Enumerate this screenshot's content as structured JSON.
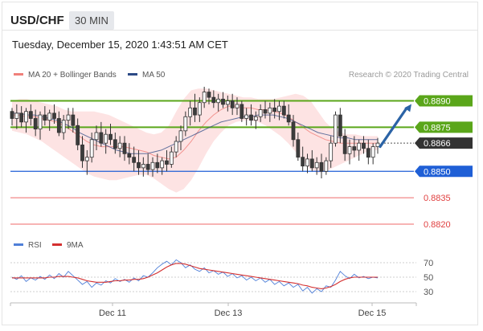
{
  "header": {
    "symbol": "USD/CHF",
    "timeframe": "30 MIN",
    "timestamp": "Tuesday, December 15, 2020 1:43:51 AM CET"
  },
  "legend": {
    "bollinger_label": "MA 20 + Bollinger Bands",
    "ma50_label": "MA 50",
    "credit": "Research © 2020 Trading Central",
    "rsi_label": "RSI",
    "rsi_ma_label": "9MA"
  },
  "colors": {
    "bollinger": "#f0807a",
    "bollinger_fill": "#fde3e3",
    "ma50": "#2c4a86",
    "resistance": "#5aa61a",
    "support": "#1f5fd6",
    "target_low": "#ef6a6a",
    "current": "#333333",
    "arrow": "#2b63a6",
    "rsi": "#4f7fd8",
    "rsi_ma": "#d43030"
  },
  "chart_data": [
    {
      "type": "candlestick",
      "title": "",
      "x_ticks": [
        "Dec 11",
        "Dec 13",
        "Dec 15"
      ],
      "ylim": [
        0.8815,
        0.8898
      ],
      "levels": [
        {
          "value": 0.889,
          "label": "0.8890",
          "role": "resistance"
        },
        {
          "value": 0.8875,
          "label": "0.8875",
          "role": "resistance"
        },
        {
          "value": 0.8866,
          "label": "0.8866",
          "role": "current"
        },
        {
          "value": 0.885,
          "label": "0.8850",
          "role": "support"
        },
        {
          "value": 0.8835,
          "label": "0.8835",
          "role": "target_low"
        },
        {
          "value": 0.882,
          "label": "0.8820",
          "role": "target_low"
        }
      ],
      "ohlc": [
        [
          0.8884,
          0.8886,
          0.8876,
          0.888
        ],
        [
          0.888,
          0.8888,
          0.8874,
          0.8883
        ],
        [
          0.8883,
          0.8887,
          0.8875,
          0.8878
        ],
        [
          0.8878,
          0.8886,
          0.8872,
          0.8884
        ],
        [
          0.8884,
          0.8888,
          0.8876,
          0.888
        ],
        [
          0.888,
          0.8885,
          0.887,
          0.8874
        ],
        [
          0.8874,
          0.8884,
          0.8868,
          0.8882
        ],
        [
          0.8882,
          0.8887,
          0.8876,
          0.8879
        ],
        [
          0.8879,
          0.8885,
          0.8873,
          0.8883
        ],
        [
          0.8883,
          0.8888,
          0.8877,
          0.888
        ],
        [
          0.888,
          0.8884,
          0.887,
          0.8872
        ],
        [
          0.8872,
          0.8882,
          0.8868,
          0.8879
        ],
        [
          0.8879,
          0.8886,
          0.8874,
          0.8882
        ],
        [
          0.8882,
          0.8886,
          0.8872,
          0.8876
        ],
        [
          0.8876,
          0.888,
          0.8862,
          0.8865
        ],
        [
          0.8865,
          0.887,
          0.8852,
          0.8856
        ],
        [
          0.8856,
          0.8862,
          0.8848,
          0.8858
        ],
        [
          0.8858,
          0.8872,
          0.8855,
          0.8868
        ],
        [
          0.8868,
          0.8876,
          0.8862,
          0.8872
        ],
        [
          0.8872,
          0.8878,
          0.8864,
          0.8866
        ],
        [
          0.8866,
          0.8874,
          0.886,
          0.8871
        ],
        [
          0.8871,
          0.8877,
          0.8865,
          0.8868
        ],
        [
          0.8868,
          0.8872,
          0.886,
          0.8863
        ],
        [
          0.8863,
          0.887,
          0.8858,
          0.8866
        ],
        [
          0.8866,
          0.887,
          0.8856,
          0.886
        ],
        [
          0.886,
          0.8866,
          0.8854,
          0.8858
        ],
        [
          0.8858,
          0.8864,
          0.885,
          0.8855
        ],
        [
          0.8855,
          0.8862,
          0.8848,
          0.8852
        ],
        [
          0.8852,
          0.8858,
          0.8847,
          0.8854
        ],
        [
          0.8854,
          0.886,
          0.8848,
          0.8851
        ],
        [
          0.8851,
          0.8858,
          0.8847,
          0.8855
        ],
        [
          0.8855,
          0.886,
          0.8849,
          0.8852
        ],
        [
          0.8852,
          0.8858,
          0.8848,
          0.8856
        ],
        [
          0.8856,
          0.8862,
          0.885,
          0.8854
        ],
        [
          0.8854,
          0.8864,
          0.8852,
          0.8861
        ],
        [
          0.8861,
          0.887,
          0.8858,
          0.8867
        ],
        [
          0.8867,
          0.8876,
          0.8862,
          0.8873
        ],
        [
          0.8873,
          0.8884,
          0.887,
          0.8881
        ],
        [
          0.8881,
          0.889,
          0.8876,
          0.8886
        ],
        [
          0.8886,
          0.8894,
          0.8878,
          0.8882
        ],
        [
          0.8882,
          0.8892,
          0.8878,
          0.8889
        ],
        [
          0.8889,
          0.8898,
          0.8886,
          0.8895
        ],
        [
          0.8895,
          0.8897,
          0.8888,
          0.8892
        ],
        [
          0.8892,
          0.8896,
          0.8886,
          0.8889
        ],
        [
          0.8889,
          0.8894,
          0.8884,
          0.8891
        ],
        [
          0.8891,
          0.8895,
          0.8886,
          0.8888
        ],
        [
          0.8888,
          0.8893,
          0.8884,
          0.889
        ],
        [
          0.889,
          0.8894,
          0.8882,
          0.8886
        ],
        [
          0.8886,
          0.8892,
          0.8882,
          0.8888
        ],
        [
          0.8888,
          0.889,
          0.8878,
          0.888
        ],
        [
          0.888,
          0.8886,
          0.8876,
          0.8882
        ],
        [
          0.8882,
          0.8888,
          0.8876,
          0.8879
        ],
        [
          0.8879,
          0.8884,
          0.8874,
          0.8881
        ],
        [
          0.8881,
          0.8888,
          0.8878,
          0.8885
        ],
        [
          0.8885,
          0.889,
          0.888,
          0.8883
        ],
        [
          0.8883,
          0.8889,
          0.8878,
          0.8886
        ],
        [
          0.8886,
          0.8891,
          0.888,
          0.8884
        ],
        [
          0.8884,
          0.889,
          0.8879,
          0.8887
        ],
        [
          0.8887,
          0.889,
          0.888,
          0.8882
        ],
        [
          0.8882,
          0.8888,
          0.8876,
          0.8878
        ],
        [
          0.8878,
          0.8882,
          0.8864,
          0.8868
        ],
        [
          0.8868,
          0.8872,
          0.8856,
          0.8858
        ],
        [
          0.8858,
          0.8864,
          0.885,
          0.8853
        ],
        [
          0.8853,
          0.886,
          0.8849,
          0.8857
        ],
        [
          0.8857,
          0.8862,
          0.885,
          0.8852
        ],
        [
          0.8852,
          0.8858,
          0.8848,
          0.8855
        ],
        [
          0.8855,
          0.886,
          0.8846,
          0.885
        ],
        [
          0.885,
          0.8858,
          0.8848,
          0.8856
        ],
        [
          0.8856,
          0.887,
          0.8852,
          0.8866
        ],
        [
          0.8866,
          0.8884,
          0.8864,
          0.8882
        ],
        [
          0.8882,
          0.8886,
          0.8866,
          0.887
        ],
        [
          0.887,
          0.8874,
          0.8856,
          0.886
        ],
        [
          0.886,
          0.8868,
          0.8854,
          0.8864
        ],
        [
          0.8864,
          0.887,
          0.8858,
          0.8862
        ],
        [
          0.8862,
          0.8868,
          0.8856,
          0.8866
        ],
        [
          0.8866,
          0.887,
          0.886,
          0.8863
        ],
        [
          0.8863,
          0.8868,
          0.8854,
          0.8858
        ],
        [
          0.8858,
          0.8866,
          0.8854,
          0.8864
        ],
        [
          0.8864,
          0.8869,
          0.886,
          0.8866
        ]
      ],
      "ma20_bands": {
        "mid": [
          0.8882,
          0.8882,
          0.8881,
          0.8881,
          0.888,
          0.8879,
          0.8878,
          0.8876,
          0.8873,
          0.887,
          0.8867,
          0.8865,
          0.8864,
          0.8864,
          0.8864,
          0.8864,
          0.8863,
          0.8862,
          0.8861,
          0.8859,
          0.8858,
          0.8857,
          0.8858,
          0.8862,
          0.8867,
          0.8873,
          0.8878,
          0.8882,
          0.8885,
          0.8887,
          0.8887,
          0.8886,
          0.8886,
          0.8885,
          0.8885,
          0.8884,
          0.8883,
          0.8881,
          0.8878,
          0.8875,
          0.8872,
          0.887,
          0.8868,
          0.8867,
          0.8866,
          0.8866,
          0.8866,
          0.8866,
          0.8866,
          0.8866
        ],
        "upper": [
          0.889,
          0.8891,
          0.8891,
          0.889,
          0.8889,
          0.8888,
          0.8887,
          0.8885,
          0.8884,
          0.8884,
          0.8884,
          0.8884,
          0.8883,
          0.8882,
          0.888,
          0.8878,
          0.8876,
          0.8874,
          0.8872,
          0.8871,
          0.8872,
          0.8876,
          0.8884,
          0.8891,
          0.8896,
          0.8897,
          0.8897,
          0.8896,
          0.8895,
          0.8894,
          0.8893,
          0.8892,
          0.8892,
          0.8891,
          0.8891,
          0.8891,
          0.8892,
          0.8893,
          0.8894,
          0.8893,
          0.889,
          0.8884,
          0.8878,
          0.8874,
          0.8872,
          0.8871,
          0.8871,
          0.887,
          0.887,
          0.887
        ],
        "lower": [
          0.8873,
          0.8872,
          0.8871,
          0.8869,
          0.8867,
          0.8864,
          0.8861,
          0.8858,
          0.8855,
          0.8852,
          0.8849,
          0.8847,
          0.8846,
          0.8845,
          0.8845,
          0.8846,
          0.8847,
          0.8848,
          0.8848,
          0.8846,
          0.8843,
          0.884,
          0.8838,
          0.884,
          0.8845,
          0.8852,
          0.886,
          0.8867,
          0.8872,
          0.8876,
          0.8878,
          0.8879,
          0.8879,
          0.8878,
          0.8876,
          0.8873,
          0.887,
          0.8866,
          0.8861,
          0.8856,
          0.8851,
          0.8849,
          0.885,
          0.8852,
          0.8854,
          0.8856,
          0.8858,
          0.886,
          0.8862,
          0.8862
        ]
      },
      "ma50": [
        0.8883,
        0.8883,
        0.8882,
        0.8882,
        0.8881,
        0.888,
        0.8879,
        0.8877,
        0.8875,
        0.8872,
        0.887,
        0.8868,
        0.8866,
        0.8864,
        0.8862,
        0.8861,
        0.886,
        0.886,
        0.886,
        0.8861,
        0.8862,
        0.8864,
        0.8866,
        0.8868,
        0.887,
        0.8872,
        0.8874,
        0.8876,
        0.8878,
        0.8879,
        0.888,
        0.8881,
        0.8881,
        0.8882,
        0.8882,
        0.8882,
        0.8881,
        0.888,
        0.8878,
        0.8876,
        0.8874,
        0.8872,
        0.8871,
        0.887,
        0.8869,
        0.8869,
        0.8868,
        0.8868,
        0.8868,
        0.8868
      ],
      "projection": {
        "from": 0.8864,
        "to": 0.889
      }
    },
    {
      "type": "line",
      "title": "",
      "y_ticks": [
        70,
        50,
        30
      ],
      "ylim": [
        20,
        80
      ],
      "series": [
        {
          "name": "RSI",
          "values": [
            50,
            47,
            52,
            44,
            49,
            46,
            51,
            47,
            53,
            48,
            55,
            50,
            58,
            52,
            46,
            40,
            44,
            36,
            42,
            39,
            45,
            42,
            48,
            44,
            47,
            43,
            49,
            45,
            52,
            50,
            56,
            63,
            68,
            72,
            67,
            74,
            70,
            63,
            67,
            61,
            58,
            63,
            56,
            59,
            54,
            57,
            51,
            55,
            49,
            52,
            46,
            50,
            45,
            49,
            43,
            47,
            40,
            44,
            38,
            42,
            36,
            40,
            31,
            36,
            28,
            34,
            30,
            38,
            36,
            46,
            58,
            52,
            48,
            54,
            49,
            51,
            48,
            50,
            49
          ]
        },
        {
          "name": "9MA",
          "values": [
            49,
            49,
            49,
            49,
            49,
            49,
            49,
            49,
            50,
            50,
            51,
            51,
            51,
            50,
            49,
            47,
            45,
            44,
            43,
            43,
            43,
            44,
            45,
            45,
            46,
            46,
            47,
            47,
            48,
            50,
            53,
            56,
            60,
            64,
            67,
            69,
            69,
            68,
            66,
            64,
            62,
            61,
            60,
            59,
            58,
            57,
            56,
            55,
            54,
            53,
            52,
            51,
            50,
            49,
            48,
            47,
            46,
            45,
            44,
            43,
            42,
            41,
            39,
            38,
            36,
            35,
            34,
            35,
            37,
            40,
            44,
            47,
            49,
            50,
            50,
            50,
            50,
            50,
            50
          ]
        }
      ]
    }
  ]
}
